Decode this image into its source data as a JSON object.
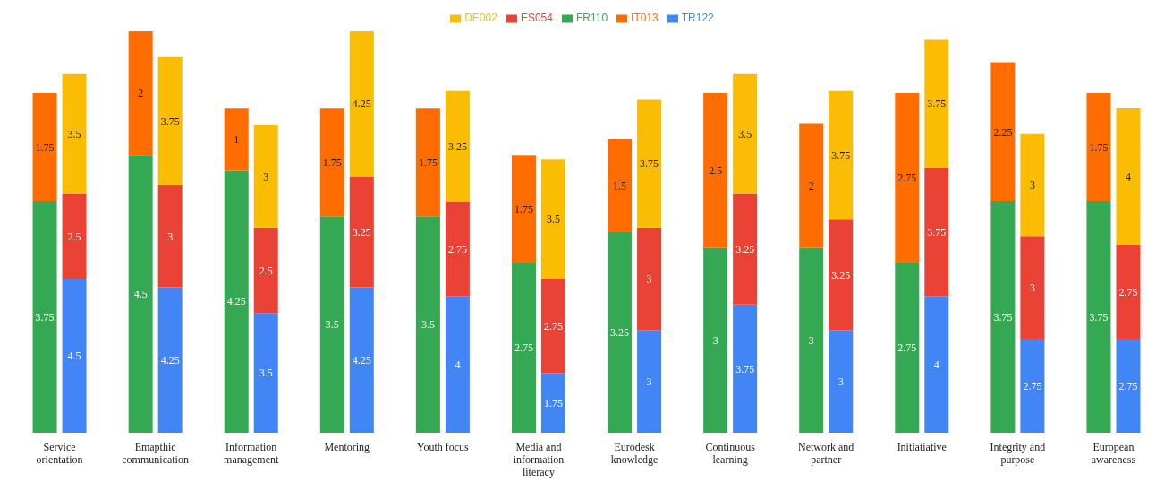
{
  "chart_data": {
    "type": "bar",
    "stacked": true,
    "data_labels": true,
    "legend": "top",
    "tick_labels": "x",
    "categories": [
      "Service orientation",
      "Emapthic communication",
      "Information management",
      "Mentoring",
      "Youth focus",
      "Media and information literacy",
      "Eurodesk knowledge",
      "Continuous learning",
      "Network and partner",
      "Initiatiative",
      "Integrity and purpose",
      "European awareness"
    ],
    "series": [
      {
        "name": "FR110",
        "color": "#34a853",
        "values": [
          3.75,
          4.5,
          4.25,
          3.5,
          3.5,
          2.75,
          3.25,
          3,
          3,
          2.75,
          3.75,
          3.75
        ]
      },
      {
        "name": "IT013",
        "color": "#ff6d01",
        "values": [
          1.75,
          2,
          1,
          1.75,
          1.75,
          1.75,
          1.5,
          2.5,
          2,
          2.75,
          2.25,
          1.75
        ]
      },
      {
        "name": "TR122",
        "color": "#4285f4",
        "axis": "y2",
        "values": [
          4.5,
          4.25,
          3.5,
          4.25,
          4,
          1.75,
          3,
          3.75,
          3,
          4,
          2.75,
          2.75
        ]
      },
      {
        "name": "ES054",
        "color": "#ea4335",
        "axis": "y2",
        "values": [
          2.5,
          3,
          2.5,
          3.25,
          2.75,
          2.75,
          3,
          3.25,
          3.25,
          3.75,
          3,
          2.75
        ]
      },
      {
        "name": "DE002",
        "color": "#fbbc04",
        "axis": "y2",
        "values": [
          3.5,
          3.75,
          3,
          4.25,
          3.25,
          3.5,
          3.75,
          3.5,
          3.75,
          3.75,
          3,
          4
        ]
      }
    ]
  }
}
